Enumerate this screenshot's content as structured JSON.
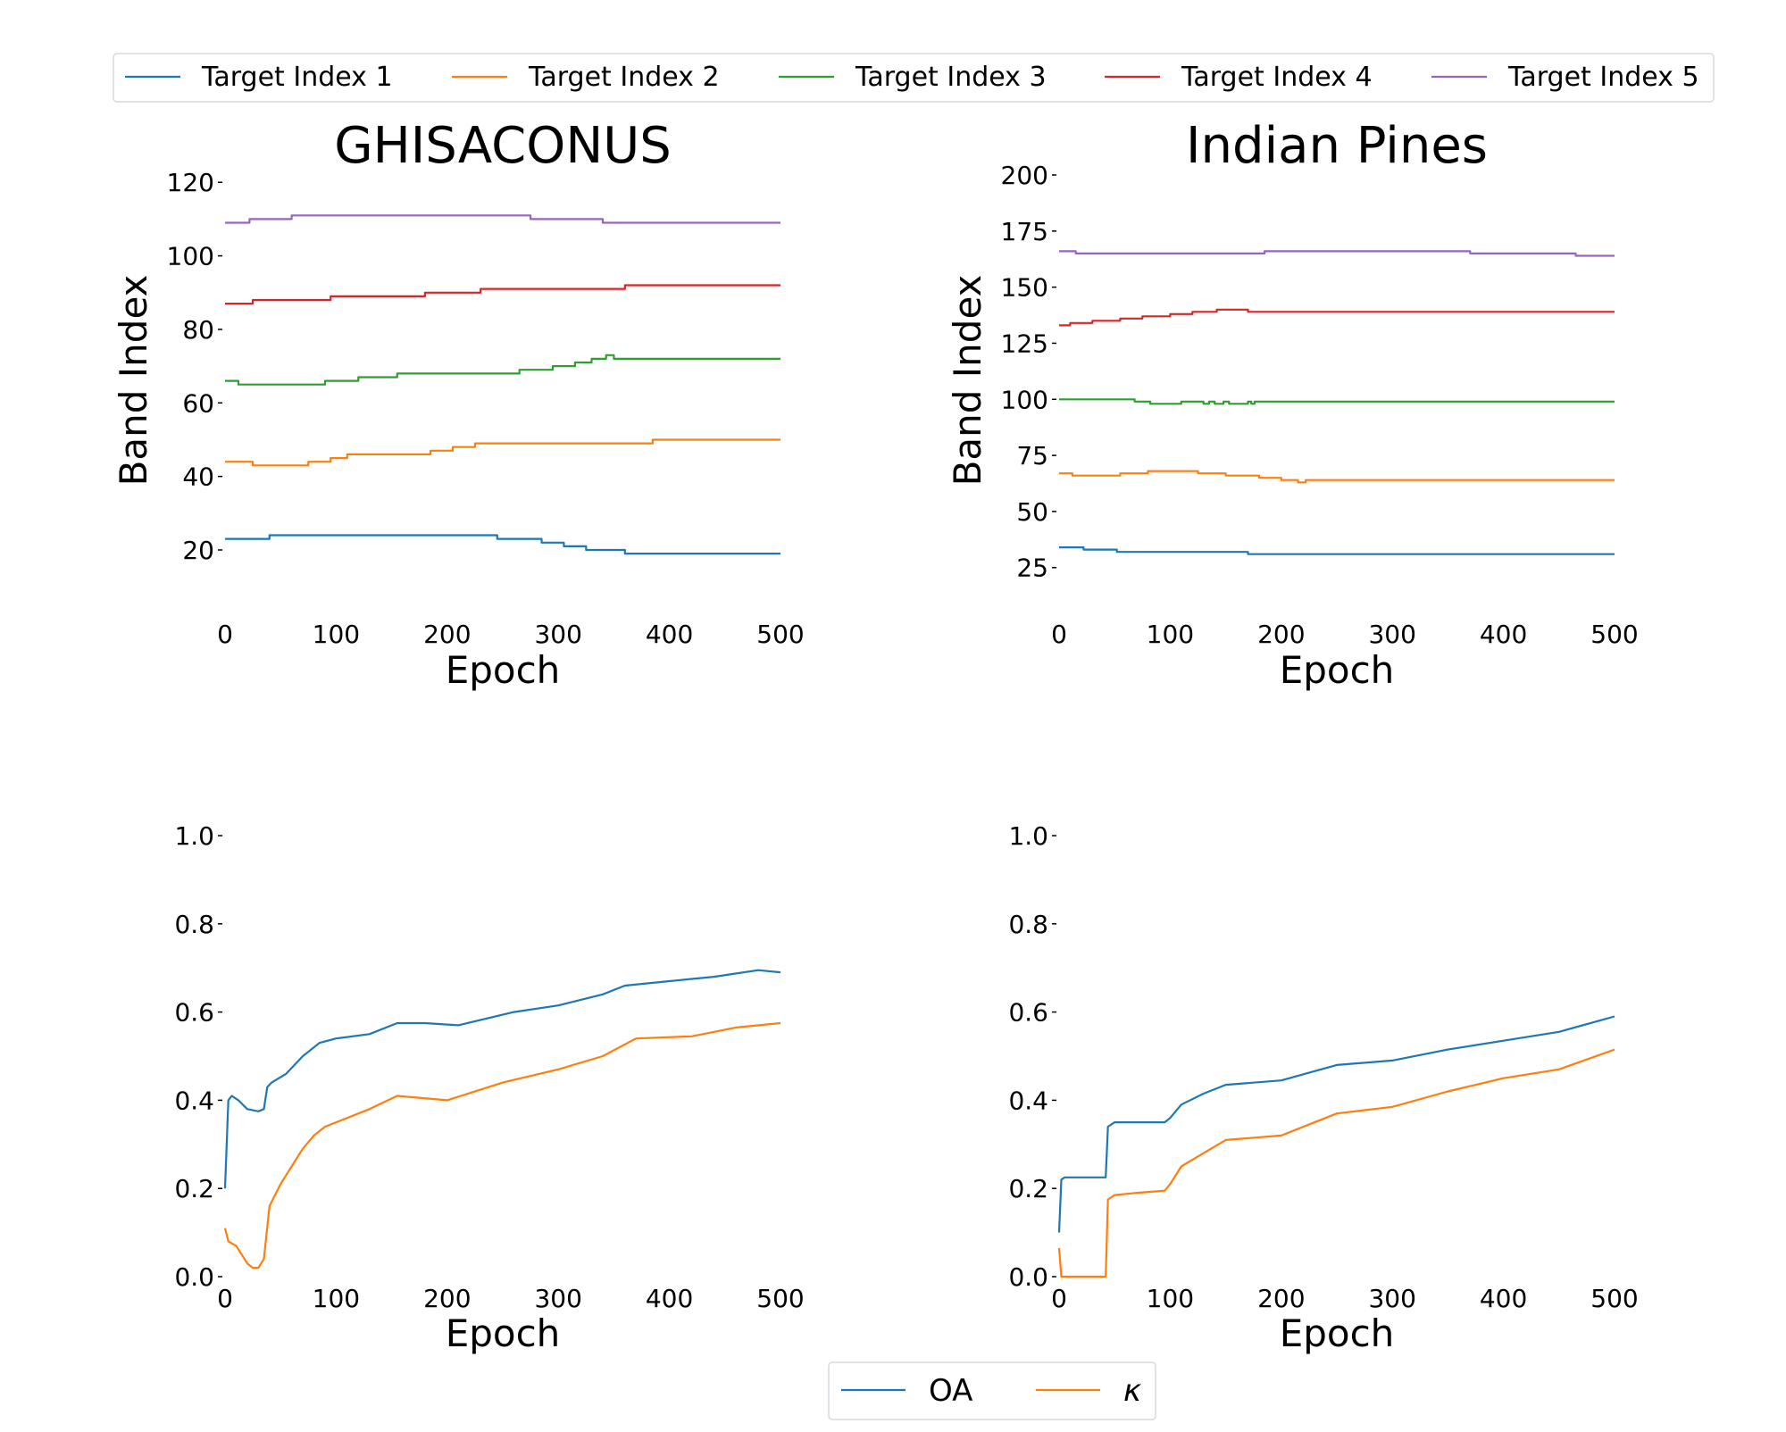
{
  "figure": {
    "top_legend": [
      "Target Index 1",
      "Target Index 2",
      "Target Index 3",
      "Target Index 4",
      "Target Index 5"
    ],
    "bottom_legend": [
      "OA",
      "κ"
    ]
  },
  "colors": {
    "blue": "#1f77b4",
    "orange": "#ff7f0e",
    "green": "#2ca02c",
    "red": "#d62728",
    "purple": "#9467bd"
  },
  "chart_data": [
    {
      "type": "line",
      "title": "GHISACONUS",
      "xlabel": "Epoch",
      "ylabel": "Band Index",
      "xlim": [
        0,
        500
      ],
      "ylim": [
        3,
        122
      ],
      "xticks": [
        0,
        100,
        200,
        300,
        400,
        500
      ],
      "yticks": [
        20,
        40,
        60,
        80,
        100,
        120
      ],
      "step": true,
      "series": [
        {
          "name": "Target Index 1",
          "color": "#1f77b4",
          "x": [
            0,
            40,
            245,
            285,
            305,
            325,
            360,
            500
          ],
          "y": [
            23,
            24,
            23,
            22,
            21,
            20,
            19,
            19
          ]
        },
        {
          "name": "Target Index 2",
          "color": "#ff7f0e",
          "x": [
            0,
            25,
            75,
            95,
            110,
            185,
            205,
            225,
            385,
            500
          ],
          "y": [
            44,
            43,
            44,
            45,
            46,
            47,
            48,
            49,
            50,
            50
          ]
        },
        {
          "name": "Target Index 3",
          "color": "#2ca02c",
          "x": [
            0,
            12,
            90,
            120,
            155,
            265,
            295,
            315,
            330,
            343,
            350,
            500
          ],
          "y": [
            66,
            65,
            66,
            67,
            68,
            69,
            70,
            71,
            72,
            73,
            72,
            72
          ]
        },
        {
          "name": "Target Index 4",
          "color": "#d62728",
          "x": [
            0,
            25,
            95,
            180,
            230,
            360,
            500
          ],
          "y": [
            87,
            88,
            89,
            90,
            91,
            92,
            92
          ]
        },
        {
          "name": "Target Index 5",
          "color": "#9467bd",
          "x": [
            0,
            22,
            60,
            275,
            340,
            500
          ],
          "y": [
            109,
            110,
            111,
            110,
            109,
            109
          ]
        }
      ]
    },
    {
      "type": "line",
      "title": "Indian Pines",
      "xlabel": "Epoch",
      "ylabel": "Band Index",
      "xlim": [
        0,
        500
      ],
      "ylim": [
        5,
        200
      ],
      "xticks": [
        0,
        100,
        200,
        300,
        400,
        500
      ],
      "yticks": [
        25,
        50,
        75,
        100,
        125,
        150,
        175,
        200
      ],
      "step": true,
      "series": [
        {
          "name": "Target Index 1",
          "color": "#1f77b4",
          "x": [
            0,
            22,
            52,
            170,
            500
          ],
          "y": [
            34,
            33,
            32,
            31,
            31
          ]
        },
        {
          "name": "Target Index 2",
          "color": "#ff7f0e",
          "x": [
            0,
            12,
            55,
            80,
            125,
            150,
            180,
            200,
            215,
            222,
            500
          ],
          "y": [
            67,
            66,
            67,
            68,
            67,
            66,
            65,
            64,
            63,
            64,
            64
          ]
        },
        {
          "name": "Target Index 3",
          "color": "#2ca02c",
          "x": [
            0,
            68,
            82,
            110,
            130,
            135,
            140,
            148,
            153,
            170,
            173,
            176,
            500
          ],
          "y": [
            100,
            99,
            98,
            99,
            98,
            99,
            98,
            99,
            98,
            99,
            98,
            99,
            99
          ]
        },
        {
          "name": "Target Index 4",
          "color": "#d62728",
          "x": [
            0,
            10,
            30,
            55,
            75,
            100,
            120,
            142,
            170,
            500
          ],
          "y": [
            133,
            134,
            135,
            136,
            137,
            138,
            139,
            140,
            139,
            139
          ]
        },
        {
          "name": "Target Index 5",
          "color": "#9467bd",
          "x": [
            0,
            15,
            185,
            370,
            465,
            500
          ],
          "y": [
            166,
            165,
            166,
            165,
            164,
            164
          ]
        }
      ]
    },
    {
      "type": "line",
      "title": "",
      "xlabel": "Epoch",
      "ylabel": "",
      "xlim": [
        0,
        500
      ],
      "ylim": [
        0,
        1.0
      ],
      "xticks": [
        0,
        100,
        200,
        300,
        400,
        500
      ],
      "yticks": [
        0.0,
        0.2,
        0.4,
        0.6,
        0.8,
        1.0
      ],
      "step": false,
      "series": [
        {
          "name": "OA",
          "color": "#1f77b4",
          "x": [
            0,
            3,
            6,
            12,
            20,
            30,
            35,
            38,
            42,
            55,
            70,
            85,
            100,
            130,
            155,
            180,
            210,
            260,
            300,
            340,
            360,
            400,
            440,
            480,
            500
          ],
          "y": [
            0.2,
            0.4,
            0.41,
            0.4,
            0.38,
            0.375,
            0.38,
            0.43,
            0.44,
            0.46,
            0.5,
            0.53,
            0.54,
            0.55,
            0.575,
            0.575,
            0.57,
            0.6,
            0.615,
            0.64,
            0.66,
            0.67,
            0.68,
            0.695,
            0.69
          ]
        },
        {
          "name": "κ",
          "color": "#ff7f0e",
          "x": [
            0,
            3,
            10,
            15,
            20,
            25,
            30,
            35,
            40,
            50,
            60,
            70,
            80,
            90,
            100,
            130,
            155,
            200,
            250,
            300,
            340,
            370,
            420,
            460,
            500
          ],
          "y": [
            0.11,
            0.08,
            0.07,
            0.05,
            0.03,
            0.02,
            0.02,
            0.04,
            0.16,
            0.21,
            0.25,
            0.29,
            0.32,
            0.34,
            0.35,
            0.38,
            0.41,
            0.4,
            0.44,
            0.47,
            0.5,
            0.54,
            0.545,
            0.565,
            0.575
          ]
        }
      ]
    },
    {
      "type": "line",
      "title": "",
      "xlabel": "Epoch",
      "ylabel": "",
      "xlim": [
        0,
        500
      ],
      "ylim": [
        0,
        1.0
      ],
      "xticks": [
        0,
        100,
        200,
        300,
        400,
        500
      ],
      "yticks": [
        0.0,
        0.2,
        0.4,
        0.6,
        0.8,
        1.0
      ],
      "step": false,
      "series": [
        {
          "name": "OA",
          "color": "#1f77b4",
          "x": [
            0,
            2,
            5,
            42,
            44,
            50,
            95,
            100,
            110,
            130,
            150,
            200,
            250,
            300,
            350,
            400,
            450,
            500
          ],
          "y": [
            0.1,
            0.22,
            0.225,
            0.225,
            0.34,
            0.35,
            0.35,
            0.36,
            0.39,
            0.415,
            0.435,
            0.445,
            0.48,
            0.49,
            0.515,
            0.535,
            0.555,
            0.59
          ]
        },
        {
          "name": "κ",
          "color": "#ff7f0e",
          "x": [
            0,
            2,
            5,
            42,
            44,
            50,
            70,
            95,
            100,
            110,
            130,
            150,
            200,
            250,
            300,
            350,
            400,
            450,
            500
          ],
          "y": [
            0.065,
            0.0,
            0.0,
            0.0,
            0.175,
            0.185,
            0.19,
            0.195,
            0.21,
            0.25,
            0.28,
            0.31,
            0.32,
            0.37,
            0.385,
            0.42,
            0.45,
            0.47,
            0.515
          ]
        }
      ]
    }
  ]
}
